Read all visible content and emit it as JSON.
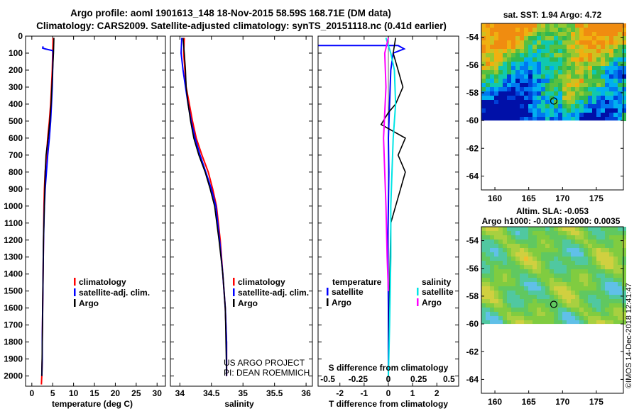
{
  "header": {
    "title_line1": "Argo profile: aoml 1901613_148 18-Nov-2015 58.59S 168.71E (DM data)",
    "title_line2": "Climatology: CARS2009. Satellite-adjusted climatology: synTS_20151118.nc (0.41d earlier)"
  },
  "colors": {
    "climatology": "#ff0000",
    "satellite": "#0000ff",
    "argo": "#000000",
    "salinity_satellite": "#00e5e5",
    "salinity_argo": "#ff00ff"
  },
  "chart_data": [
    {
      "id": "temperature",
      "type": "line",
      "xlabel": "temperature (deg C)",
      "ylim": [
        2060,
        0
      ],
      "xlim": [
        -1.5,
        32
      ],
      "xticks": [
        0,
        5,
        10,
        15,
        20,
        25,
        30
      ],
      "xtick_labels": [
        "0",
        "5",
        "10",
        "15",
        "20",
        "25",
        "30"
      ],
      "yticks": [
        0,
        100,
        200,
        300,
        400,
        500,
        600,
        700,
        800,
        900,
        1000,
        1100,
        1200,
        1300,
        1400,
        1500,
        1600,
        1700,
        1800,
        1900,
        2000
      ],
      "ytick_labels": [
        "0",
        "100",
        "200",
        "300",
        "400",
        "500",
        "600",
        "700",
        "800",
        "900",
        "1000",
        "1100",
        "1200",
        "1300",
        "1400",
        "1500",
        "1600",
        "1700",
        "1800",
        "1900",
        "2000"
      ],
      "legend": [
        "climatology",
        "satellite-adj. clim.",
        "Argo"
      ],
      "series": [
        {
          "name": "climatology",
          "color": "#ff0000",
          "x": [
            5.1,
            5.0,
            4.9,
            4.7,
            4.5,
            4.2,
            3.8,
            3.5,
            3.2,
            3.0,
            2.9,
            2.8,
            2.7,
            2.6,
            2.5,
            2.5,
            2.4,
            2.3
          ],
          "y": [
            10,
            100,
            200,
            300,
            400,
            500,
            600,
            700,
            800,
            900,
            1000,
            1200,
            1400,
            1600,
            1800,
            1900,
            2000,
            2050
          ]
        },
        {
          "name": "satellite-adj. clim.",
          "color": "#0000ff",
          "x": [
            2.7,
            2.6,
            3.2,
            5.0,
            5.1,
            5.0,
            4.9,
            4.7,
            4.5,
            4.2,
            3.8,
            3.5,
            3.2,
            3.0,
            2.9,
            2.8,
            2.7,
            2.6,
            2.5,
            2.5,
            2.4
          ],
          "y": [
            60,
            70,
            75,
            85,
            100,
            200,
            300,
            400,
            500,
            600,
            700,
            800,
            900,
            1000,
            1100,
            1200,
            1400,
            1600,
            1800,
            1900,
            2000
          ]
        },
        {
          "name": "Argo",
          "color": "#000000",
          "x": [
            5.3,
            5.2,
            5.0,
            4.8,
            4.6,
            4.3,
            3.9,
            3.4,
            3.2,
            3.0,
            2.8,
            2.7,
            2.6,
            2.5,
            2.4
          ],
          "y": [
            10,
            100,
            200,
            300,
            400,
            500,
            600,
            700,
            800,
            1000,
            1200,
            1400,
            1600,
            1800,
            2000
          ]
        }
      ]
    },
    {
      "id": "salinity",
      "type": "line",
      "xlabel": "salinity",
      "ylim": [
        2060,
        0
      ],
      "xlim": [
        33.85,
        36.1
      ],
      "xticks": [
        34,
        34.5,
        35,
        35.5,
        36
      ],
      "xtick_labels": [
        "34",
        "34.5",
        "35",
        "35.5",
        "36"
      ],
      "legend": [
        "climatology",
        "satellite-adj. clim.",
        "Argo"
      ],
      "annotations": [
        "US ARGO PROJECT",
        "PI: DEAN ROEMMICH"
      ],
      "series": [
        {
          "name": "climatology",
          "color": "#ff0000",
          "x": [
            34.07,
            34.06,
            34.08,
            34.1,
            34.15,
            34.2,
            34.26,
            34.35,
            34.45,
            34.52,
            34.58,
            34.64,
            34.68,
            34.72,
            34.74,
            34.74
          ],
          "y": [
            10,
            100,
            200,
            300,
            400,
            500,
            600,
            700,
            800,
            900,
            1000,
            1200,
            1400,
            1600,
            1800,
            2000
          ]
        },
        {
          "name": "satellite-adj. clim.",
          "color": "#0000ff",
          "x": [
            34.03,
            34.02,
            34.05,
            34.09,
            34.13,
            34.18,
            34.24,
            34.32,
            34.41,
            34.5,
            34.57,
            34.63,
            34.68,
            34.72,
            34.74,
            34.74
          ],
          "y": [
            10,
            100,
            200,
            300,
            400,
            500,
            600,
            700,
            800,
            900,
            1000,
            1200,
            1400,
            1600,
            1800,
            2000
          ]
        },
        {
          "name": "Argo",
          "color": "#000000",
          "x": [
            34.05,
            34.07,
            34.09,
            34.1,
            34.13,
            34.17,
            34.22,
            34.3,
            34.4,
            34.48,
            34.55,
            34.62,
            34.68,
            34.72,
            34.74
          ],
          "y": [
            10,
            100,
            200,
            300,
            400,
            500,
            600,
            700,
            800,
            900,
            1000,
            1200,
            1400,
            1600,
            2000
          ]
        }
      ]
    },
    {
      "id": "difference",
      "type": "line",
      "xlabel": "T difference from climatology",
      "xlabel_top": "S difference from climatology",
      "ylim": [
        2060,
        0
      ],
      "xlim": [
        -2.9,
        2.9
      ],
      "xticks": [
        -2,
        -1,
        0,
        1,
        2
      ],
      "xtick_labels": [
        "-2",
        "-1",
        "0",
        "1",
        "2"
      ],
      "xticks_top_labels": [
        "-0.5",
        "-0.25",
        "0",
        "0.25",
        "0.5"
      ],
      "xticks_top_values": [
        -0.5,
        -0.25,
        0,
        0.25,
        0.5
      ],
      "s_scale": 0.2,
      "legend_temperature_title": "temperature",
      "legend_salinity_title": "salinity",
      "legend_entries": [
        "satellite",
        "Argo",
        "satellite",
        "Argo"
      ],
      "series": [
        {
          "name": "temperature satellite",
          "color": "#0000ff",
          "x": [
            -2.9,
            0.4,
            0.65,
            0.2,
            0.1,
            0.05,
            0.0,
            0.02,
            0.0,
            -0.02,
            0.0,
            0.0
          ],
          "y": [
            55,
            55,
            75,
            100,
            200,
            400,
            600,
            800,
            1000,
            1200,
            1600,
            2000
          ]
        },
        {
          "name": "temperature Argo",
          "color": "#000000",
          "x": [
            0.3,
            0.2,
            0.4,
            0.6,
            0.3,
            0.0,
            -0.3,
            0.7,
            0.4,
            0.7,
            0.5,
            0.1,
            0.05,
            0.0
          ],
          "y": [
            10,
            100,
            200,
            300,
            400,
            450,
            520,
            600,
            700,
            800,
            900,
            1100,
            1500,
            2000
          ]
        },
        {
          "name": "salinity satellite",
          "color": "#00e5e5",
          "x": [
            -0.02,
            0.02,
            0.05,
            0.06,
            0.04,
            0.03,
            0.02,
            0.02,
            0.01,
            0.0
          ],
          "y": [
            10,
            100,
            200,
            400,
            600,
            800,
            1000,
            1300,
            1700,
            2000
          ]
        },
        {
          "name": "salinity Argo",
          "color": "#ff00ff",
          "x": [
            0.0,
            -0.03,
            -0.02,
            -0.04,
            -0.03,
            -0.02,
            -0.01,
            0.0
          ],
          "y": [
            10,
            100,
            300,
            600,
            800,
            1000,
            1300,
            1500
          ]
        }
      ]
    }
  ],
  "maps": [
    {
      "id": "sst-map",
      "title_line1": "sat. SST: 1.94 Argo: 4.72",
      "lon_ticks": [
        "160",
        "165",
        "170",
        "175"
      ],
      "lat_ticks": [
        "-54",
        "-56",
        "-58",
        "-60",
        "-62",
        "-64"
      ],
      "lon_range": [
        158,
        179
      ],
      "lat_range": [
        -65,
        -53
      ],
      "float_lon": 168.71,
      "float_lat": -58.59,
      "no_data_below_lat": -60
    },
    {
      "id": "sla-map",
      "title_line1": "Altim. SLA: -0.053",
      "title_line2": "Argo h1000: -0.0018 h2000: 0.0035",
      "lon_ticks": [
        "160",
        "165",
        "170",
        "175"
      ],
      "lat_ticks": [
        "-54",
        "-56",
        "-58",
        "-60",
        "-62",
        "-64"
      ],
      "lon_range": [
        158,
        179
      ],
      "lat_range": [
        -65,
        -53
      ],
      "float_lon": 168.71,
      "float_lat": -58.59,
      "no_data_below_lat": -60
    }
  ],
  "watermark": "©IMOS 14-Dec-2018 12:41:47"
}
